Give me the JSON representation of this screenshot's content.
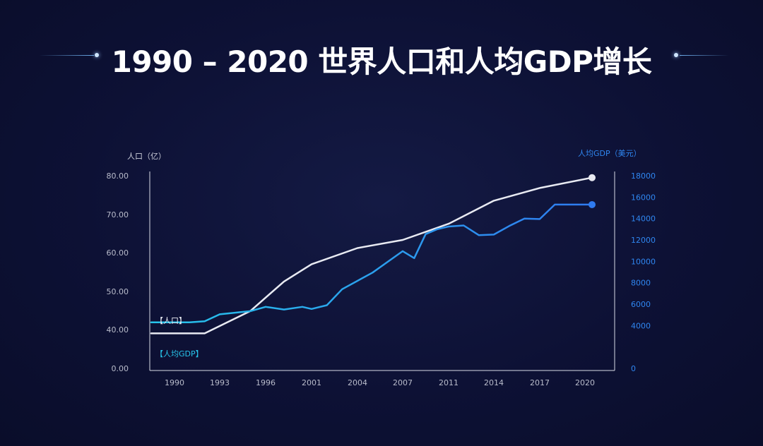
{
  "title": "1990 – 2020 世界人口和人均GDP增长",
  "chart_data": {
    "type": "line",
    "title": "1990 – 2020 世界人口和人均GDP增长",
    "x": [
      1990,
      1992,
      1995,
      1998,
      2000,
      2003,
      2006,
      2008,
      2010,
      2011,
      2012,
      2014,
      2015,
      2016,
      2017,
      2019,
      2020
    ],
    "x_ticks": [
      "1990",
      "1993",
      "1996",
      "2001",
      "2004",
      "2007",
      "2011",
      "2014",
      "2017",
      "2020"
    ],
    "y_left": {
      "label": "人口（亿）",
      "ticks": [
        "0.00",
        "40.00",
        "50.00",
        "60.00",
        "70.00",
        "80.00"
      ],
      "axis_break": true
    },
    "y_right": {
      "label": "人均GDP（美元）",
      "ticks": [
        "0",
        "4000",
        "6000",
        "8000",
        "10000",
        "12000",
        "14000",
        "16000",
        "18000"
      ],
      "ylim": [
        0,
        18000
      ]
    },
    "series": [
      {
        "name": "人口",
        "label": "【人口】",
        "axis": "left",
        "color": "#e8eaf2",
        "x": [
          1990,
          1992,
          1995,
          1998,
          2001,
          2004,
          2007,
          2011,
          2014,
          2017,
          2020
        ],
        "values": [
          39.0,
          39.0,
          44.8,
          52.5,
          57.0,
          61.2,
          63.3,
          67.5,
          73.5,
          76.8,
          79.5
        ]
      },
      {
        "name": "人均GDP",
        "label": "【人均GDP】",
        "axis": "right",
        "color_start": "#27c4ea",
        "color_end": "#2f7bf0",
        "x": [
          1990,
          1991,
          1992,
          1993,
          1995,
          1996,
          1998,
          2000,
          2001,
          2002,
          2003,
          2005,
          2007,
          2008,
          2009,
          2010,
          2011,
          2012,
          2013,
          2014,
          2015,
          2016,
          2017,
          2018,
          2019,
          2020
        ],
        "values": [
          4300,
          4300,
          4400,
          5050,
          5350,
          5750,
          5500,
          5750,
          5550,
          5900,
          7400,
          8950,
          10950,
          10300,
          12550,
          13000,
          13250,
          13350,
          12450,
          12500,
          13300,
          14000,
          13950,
          15300,
          15300,
          15300
        ]
      }
    ],
    "legend": "inline-left",
    "grid": false
  }
}
